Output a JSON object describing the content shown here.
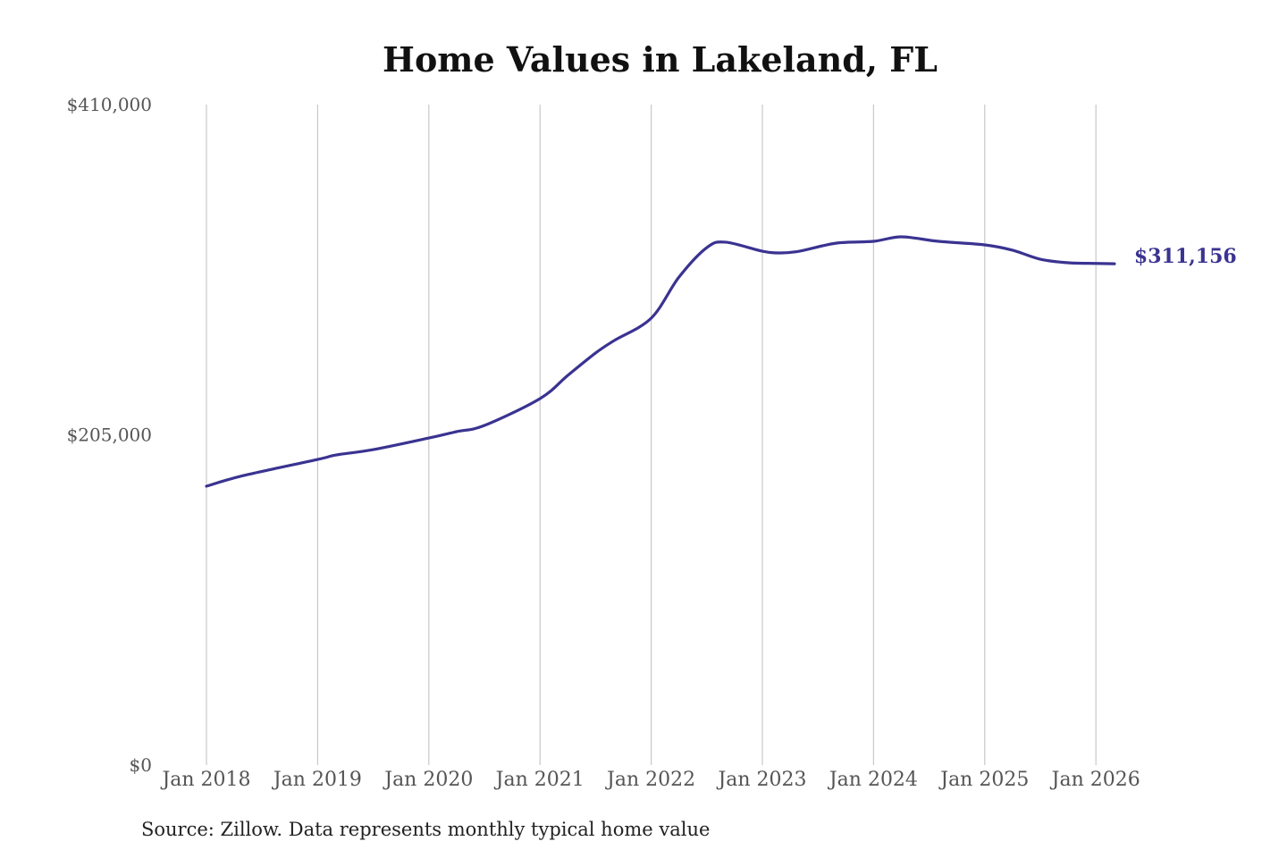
{
  "chart_data": {
    "type": "line",
    "title": "Home Values in Lakeland, FL",
    "xlabel": "",
    "ylabel": "",
    "ylim": [
      0,
      410000
    ],
    "y_ticks": [
      {
        "value": 0,
        "label": "$0"
      },
      {
        "value": 205000,
        "label": "$205,000"
      },
      {
        "value": 410000,
        "label": "$410,000"
      }
    ],
    "x_ticks": [
      {
        "value": "2018-01",
        "label": "Jan 2018"
      },
      {
        "value": "2019-01",
        "label": "Jan 2019"
      },
      {
        "value": "2020-01",
        "label": "Jan 2020"
      },
      {
        "value": "2021-01",
        "label": "Jan 2021"
      },
      {
        "value": "2022-01",
        "label": "Jan 2022"
      },
      {
        "value": "2023-01",
        "label": "Jan 2023"
      },
      {
        "value": "2024-01",
        "label": "Jan 2024"
      },
      {
        "value": "2025-01",
        "label": "Jan 2025"
      },
      {
        "value": "2026-01",
        "label": "Jan 2026"
      }
    ],
    "grid": "vertical",
    "series": [
      {
        "color": "#3a3391",
        "points": [
          [
            "2018-01",
            173100
          ],
          [
            "2018-05",
            179700
          ],
          [
            "2019-01",
            189700
          ],
          [
            "2019-03",
            192500
          ],
          [
            "2019-07",
            195800
          ],
          [
            "2020-01",
            203000
          ],
          [
            "2020-04",
            207000
          ],
          [
            "2020-07",
            210800
          ],
          [
            "2021-01",
            227500
          ],
          [
            "2021-04",
            241900
          ],
          [
            "2021-07",
            255800
          ],
          [
            "2021-09",
            263500
          ],
          [
            "2022-01",
            277400
          ],
          [
            "2022-04",
            302900
          ],
          [
            "2022-07",
            321200
          ],
          [
            "2022-09",
            324600
          ],
          [
            "2023-01",
            319000
          ],
          [
            "2023-03",
            317900
          ],
          [
            "2023-05",
            319000
          ],
          [
            "2023-09",
            324000
          ],
          [
            "2024-01",
            325100
          ],
          [
            "2024-04",
            327900
          ],
          [
            "2024-08",
            325100
          ],
          [
            "2025-01",
            322900
          ],
          [
            "2025-04",
            319600
          ],
          [
            "2025-07",
            314000
          ],
          [
            "2025-10",
            311800
          ],
          [
            "2026-01",
            311400
          ],
          [
            "2026-03",
            311156
          ]
        ]
      }
    ],
    "end_label": "$311,156",
    "source": "Source: Zillow. Data represents monthly typical home value"
  }
}
